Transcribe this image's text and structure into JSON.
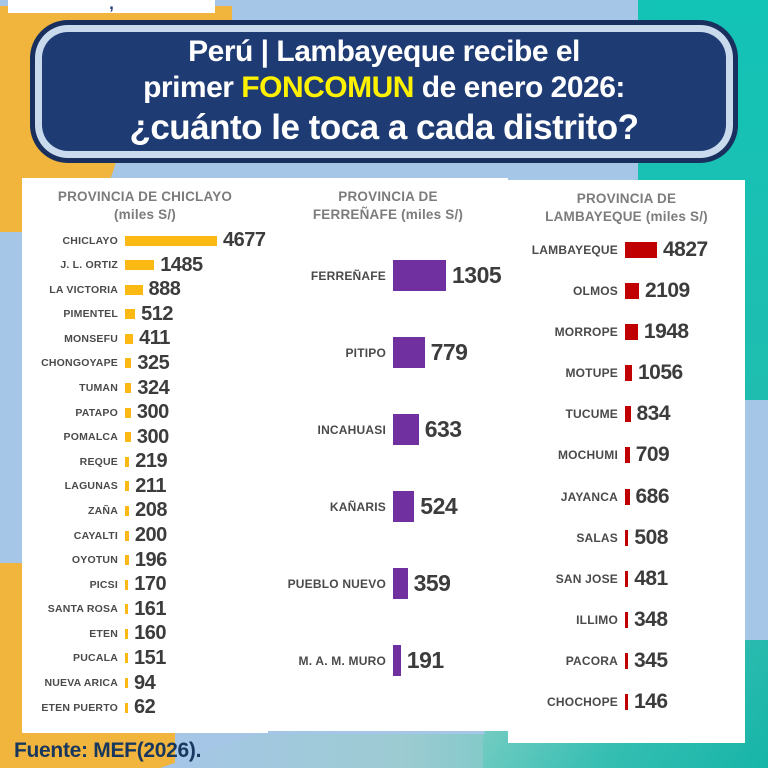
{
  "page": {
    "top_fragment": ",",
    "source": "Fuente: MEF(2026)."
  },
  "title": {
    "line1": "Perú | Lambayeque recibe el",
    "line2_pre": "primer",
    "line2_highlight": "FONCOMUN",
    "line2_post": "de enero 2026:",
    "line3": "¿cuánto le toca a cada distrito?"
  },
  "colors": {
    "title_bg": "#1E3B74",
    "title_highlight": "#FFF200",
    "background_blue": "#A6C6E8",
    "background_teal": "#15C1B2",
    "background_yellow": "#F1B43C",
    "chiclayo_bar": "#FCB813",
    "ferrenafe_bar": "#7030A0",
    "lambayeque_bar": "#C00000"
  },
  "chart_data": [
    {
      "type": "bar",
      "orientation": "horizontal",
      "header_line1": "PROVINCIA DE CHICLAYO",
      "header_line2": "(miles S/)",
      "unit": "miles S/",
      "bar_color": "#FCB813",
      "categories": [
        "CHICLAYO",
        "J. L. ORTIZ",
        "LA VICTORIA",
        "PIMENTEL",
        "MONSEFU",
        "CHONGOYAPE",
        "TUMAN",
        "PATAPO",
        "POMALCA",
        "REQUE",
        "LAGUNAS",
        "ZAÑA",
        "CAYALTI",
        "OYOTUN",
        "PICSI",
        "SANTA ROSA",
        "ETEN",
        "PUCALA",
        "NUEVA ARICA",
        "ETEN PUERTO"
      ],
      "values": [
        4677,
        1485,
        888,
        512,
        411,
        325,
        324,
        300,
        300,
        219,
        211,
        208,
        200,
        196,
        170,
        161,
        160,
        151,
        94,
        62
      ]
    },
    {
      "type": "bar",
      "orientation": "horizontal",
      "header_line1": "PROVINCIA DE",
      "header_line2": "FERREÑAFE (miles S/)",
      "unit": "miles S/",
      "bar_color": "#7030A0",
      "categories": [
        "FERREÑAFE",
        "PITIPO",
        "INCAHUASI",
        "KAÑARIS",
        "PUEBLO NUEVO",
        "M. A. M. MURO"
      ],
      "values": [
        1305,
        779,
        633,
        524,
        359,
        191
      ]
    },
    {
      "type": "bar",
      "orientation": "horizontal",
      "header_line1": "PROVINCIA DE",
      "header_line2": "LAMBAYEQUE (miles S/)",
      "unit": "miles S/",
      "bar_color": "#C00000",
      "categories": [
        "LAMBAYEQUE",
        "OLMOS",
        "MORROPE",
        "MOTUPE",
        "TUCUME",
        "MOCHUMI",
        "JAYANCA",
        "SALAS",
        "SAN JOSE",
        "ILLIMO",
        "PACORA",
        "CHOCHOPE"
      ],
      "values": [
        4827,
        2109,
        1948,
        1056,
        834,
        709,
        686,
        508,
        481,
        348,
        345,
        146
      ]
    }
  ]
}
